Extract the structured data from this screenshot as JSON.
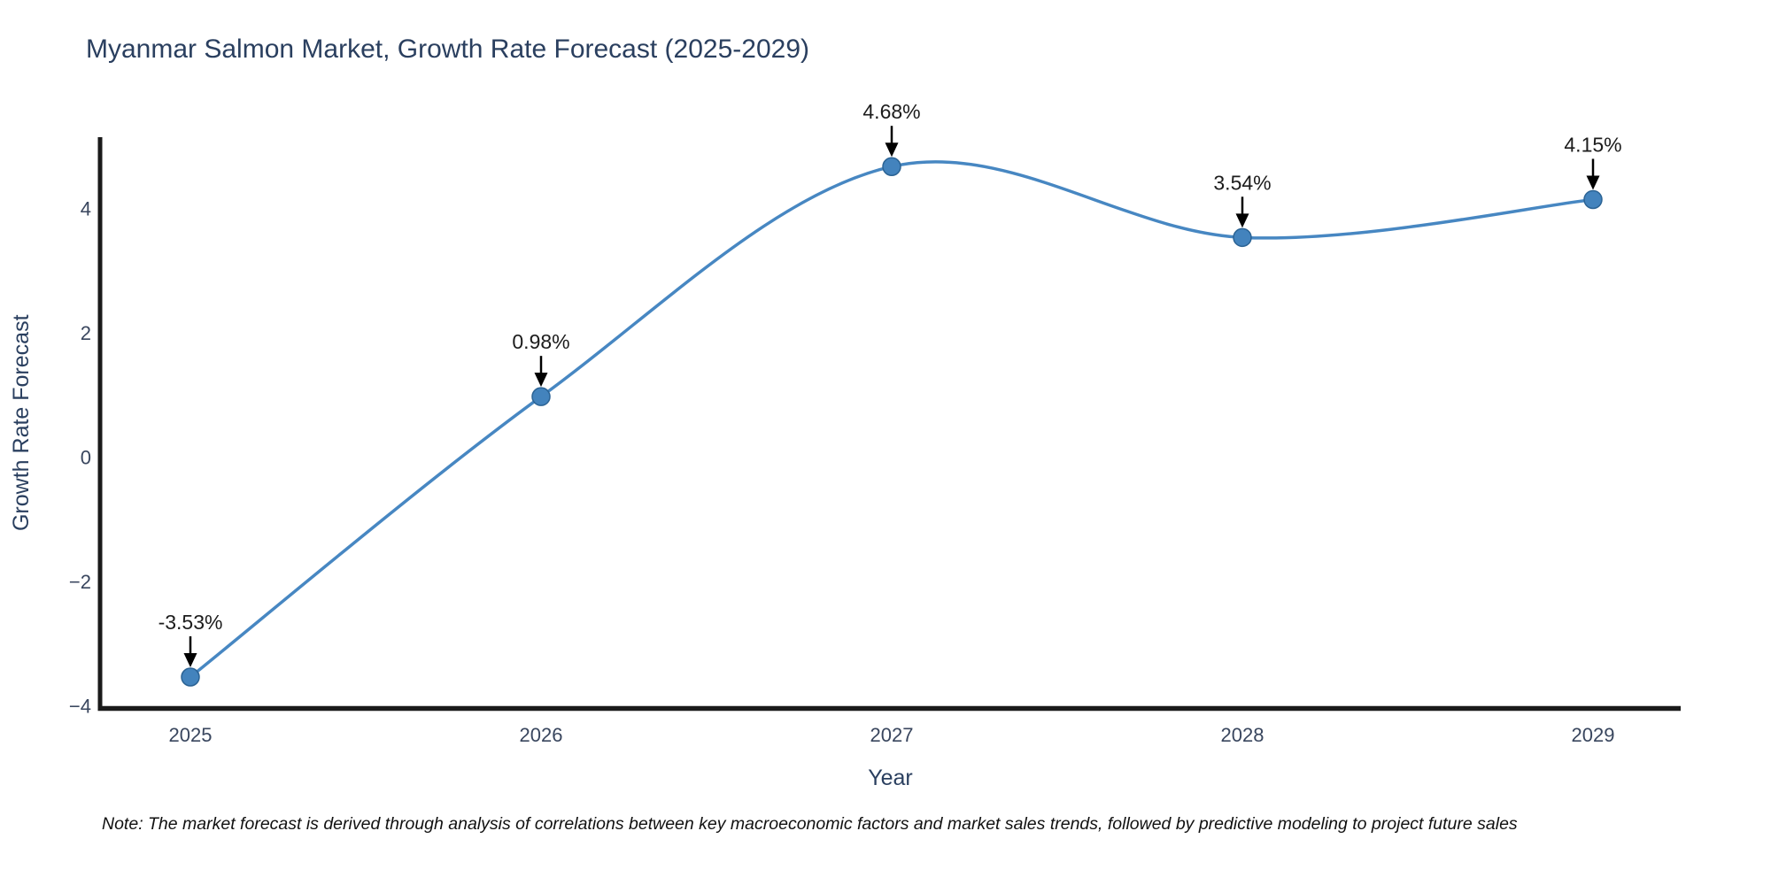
{
  "chart_data": {
    "type": "line",
    "title": "Myanmar Salmon Market, Growth Rate Forecast (2025-2029)",
    "categories": [
      "2025",
      "2026",
      "2027",
      "2028",
      "2029"
    ],
    "x": [
      2025,
      2026,
      2027,
      2028,
      2029
    ],
    "values": [
      -3.53,
      0.98,
      4.68,
      3.54,
      4.15
    ],
    "point_labels": [
      "-3.53%",
      "0.98%",
      "4.68%",
      "3.54%",
      "4.15%"
    ],
    "xlabel": "Year",
    "ylabel": "Growth Rate Forecast",
    "yticks": [
      4,
      2,
      0,
      -2,
      -4
    ],
    "ylim": [
      -4.1,
      5.2
    ],
    "line_shape": "spline",
    "grid": false,
    "legend": false,
    "colors": {
      "line": "#4787c2",
      "marker_fill": "#4383bd",
      "marker_edge": "#2b6394",
      "axis_line": "#1a1a1a",
      "title_text": "#2a3f5f",
      "axis_title_text": "#2a3f5f",
      "tick_text": "#39465e",
      "annotation_text": "#1c1c1c",
      "annotation_arrow": "#000000"
    }
  },
  "note": "Note: The market forecast is derived through analysis of correlations between key macroeconomic factors and market sales trends, followed by predictive modeling to project future sales"
}
